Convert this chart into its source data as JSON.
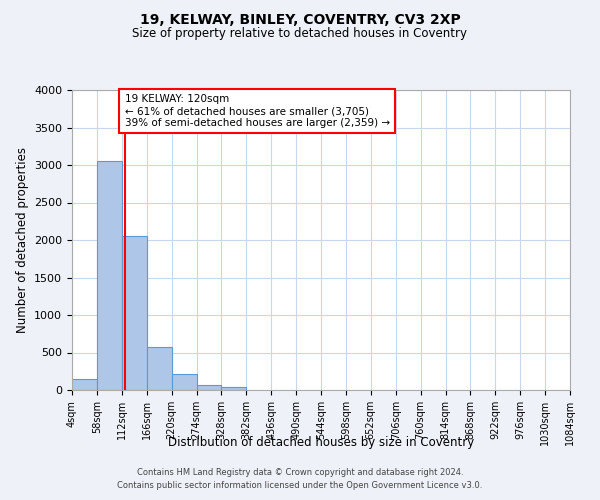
{
  "title_line1": "19, KELWAY, BINLEY, COVENTRY, CV3 2XP",
  "title_line2": "Size of property relative to detached houses in Coventry",
  "xlabel": "Distribution of detached houses by size in Coventry",
  "ylabel": "Number of detached properties",
  "bin_edges": [
    4,
    58,
    112,
    166,
    220,
    274,
    328,
    382,
    436,
    490,
    544,
    598,
    652,
    706,
    760,
    814,
    868,
    922,
    976,
    1030,
    1084
  ],
  "bar_heights": [
    150,
    3060,
    2060,
    570,
    210,
    65,
    40,
    0,
    0,
    0,
    0,
    0,
    0,
    0,
    0,
    0,
    0,
    0,
    0,
    0
  ],
  "bar_color": "#aec6e8",
  "bar_edge_color": "#5b9bd5",
  "reference_line_x": 120,
  "reference_line_color": "red",
  "ylim": [
    0,
    4000
  ],
  "yticks": [
    0,
    500,
    1000,
    1500,
    2000,
    2500,
    3000,
    3500,
    4000
  ],
  "annotation_title": "19 KELWAY: 120sqm",
  "annotation_line1": "← 61% of detached houses are smaller (3,705)",
  "annotation_line2": "39% of semi-detached houses are larger (2,359) →",
  "annotation_box_color": "red",
  "footer_line1": "Contains HM Land Registry data © Crown copyright and database right 2024.",
  "footer_line2": "Contains public sector information licensed under the Open Government Licence v3.0.",
  "bg_color": "#eef2f8",
  "plot_bg_color": "#ffffff",
  "grid_color": "#c8d8ec"
}
